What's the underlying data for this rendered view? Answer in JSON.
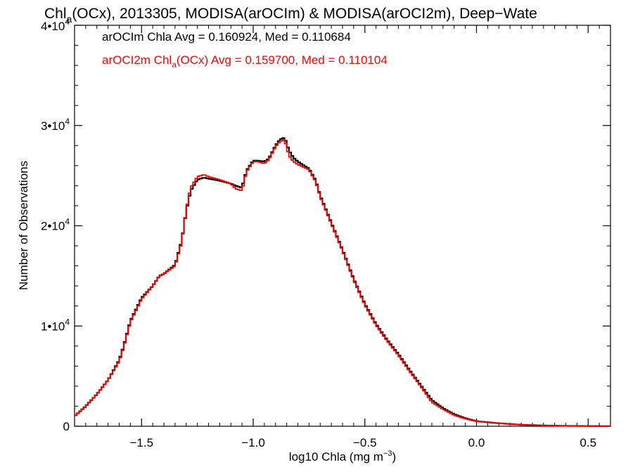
{
  "colors": {
    "series1": "#000000",
    "series2": "#ff0000",
    "axes": "#000000",
    "background": "#ffffff"
  },
  "chart_data": {
    "type": "line",
    "title": {
      "prefix": "Chl",
      "subscript": "a",
      "rest": "(OCx), 2013305, MODISA(arOCIm) & MODISA(arOCI2m), Deep−Wate"
    },
    "xlabel": {
      "prefix": "log10 Chla (mg m",
      "superscript": "−3",
      "suffix": ")"
    },
    "ylabel": "Number of Observations",
    "xlim": [
      -1.8,
      0.6
    ],
    "ylim": [
      0,
      40000
    ],
    "x_ticks": [
      {
        "value": -1.5,
        "label": "−1.5"
      },
      {
        "value": -1.0,
        "label": "−1.0"
      },
      {
        "value": -0.5,
        "label": "−0.5"
      },
      {
        "value": 0.0,
        "label": "0.0"
      },
      {
        "value": 0.5,
        "label": "0.5"
      }
    ],
    "y_ticks": [
      {
        "value": 0,
        "base": "0",
        "exp": ""
      },
      {
        "value": 10000,
        "base": "1•10",
        "exp": "4"
      },
      {
        "value": 20000,
        "base": "2•10",
        "exp": "4"
      },
      {
        "value": 30000,
        "base": "3•10",
        "exp": "4"
      },
      {
        "value": 40000,
        "base": "4•10",
        "exp": "4"
      }
    ],
    "legend": [
      {
        "text": "arOCIm Chla Avg = 0.160924, Med = 0.110684",
        "color": "#000000"
      },
      {
        "prefix": "arOCI2m Chl",
        "subscript": "a",
        "suffix": "(OCx) Avg = 0.159700, Med = 0.110104",
        "color": "#ff0000"
      }
    ],
    "series": [
      {
        "color": "#000000",
        "x": [
          -1.8,
          -1.75,
          -1.7,
          -1.65,
          -1.6,
          -1.58,
          -1.55,
          -1.5,
          -1.45,
          -1.42,
          -1.4,
          -1.35,
          -1.32,
          -1.3,
          -1.28,
          -1.25,
          -1.22,
          -1.2,
          -1.15,
          -1.1,
          -1.08,
          -1.05,
          -1.03,
          -1.0,
          -0.98,
          -0.95,
          -0.93,
          -0.9,
          -0.88,
          -0.86,
          -0.84,
          -0.82,
          -0.8,
          -0.78,
          -0.75,
          -0.72,
          -0.7,
          -0.65,
          -0.6,
          -0.55,
          -0.5,
          -0.45,
          -0.4,
          -0.35,
          -0.3,
          -0.25,
          -0.2,
          -0.15,
          -0.1,
          -0.05,
          0.0,
          0.1,
          0.2,
          0.3,
          0.4,
          0.5,
          0.6
        ],
        "y": [
          1000,
          2000,
          3200,
          4600,
          6600,
          8000,
          10500,
          12800,
          14000,
          15000,
          15200,
          16100,
          18500,
          21500,
          23500,
          24600,
          24800,
          24700,
          24500,
          24200,
          24000,
          23800,
          25500,
          26500,
          26500,
          26400,
          26700,
          28000,
          28600,
          28800,
          27500,
          26800,
          26400,
          26100,
          25700,
          24500,
          23000,
          20300,
          17600,
          14700,
          12200,
          10200,
          8600,
          7200,
          5600,
          4100,
          2600,
          1800,
          1200,
          800,
          500,
          300,
          150,
          80,
          40,
          20,
          10
        ]
      },
      {
        "color": "#ff0000",
        "x": [
          -1.8,
          -1.75,
          -1.7,
          -1.65,
          -1.6,
          -1.58,
          -1.55,
          -1.5,
          -1.45,
          -1.42,
          -1.4,
          -1.35,
          -1.32,
          -1.3,
          -1.28,
          -1.25,
          -1.22,
          -1.2,
          -1.15,
          -1.1,
          -1.08,
          -1.05,
          -1.03,
          -1.0,
          -0.98,
          -0.95,
          -0.93,
          -0.9,
          -0.88,
          -0.86,
          -0.84,
          -0.82,
          -0.8,
          -0.78,
          -0.75,
          -0.72,
          -0.7,
          -0.65,
          -0.6,
          -0.55,
          -0.5,
          -0.45,
          -0.4,
          -0.35,
          -0.3,
          -0.25,
          -0.2,
          -0.15,
          -0.1,
          -0.05,
          0.0,
          0.1,
          0.2,
          0.3,
          0.4,
          0.5,
          0.6
        ],
        "y": [
          1000,
          2000,
          3200,
          4600,
          6500,
          7900,
          10400,
          12700,
          14000,
          15000,
          15200,
          16000,
          18400,
          21600,
          23800,
          24900,
          25100,
          24900,
          24600,
          24200,
          23700,
          23500,
          25400,
          26400,
          26400,
          26200,
          26600,
          27900,
          28400,
          28600,
          27000,
          26400,
          26100,
          25900,
          25600,
          24400,
          22900,
          20200,
          17500,
          14600,
          12100,
          10100,
          8500,
          7100,
          5500,
          4000,
          2400,
          1700,
          1100,
          750,
          480,
          290,
          145,
          78,
          38,
          18,
          8
        ]
      }
    ]
  }
}
